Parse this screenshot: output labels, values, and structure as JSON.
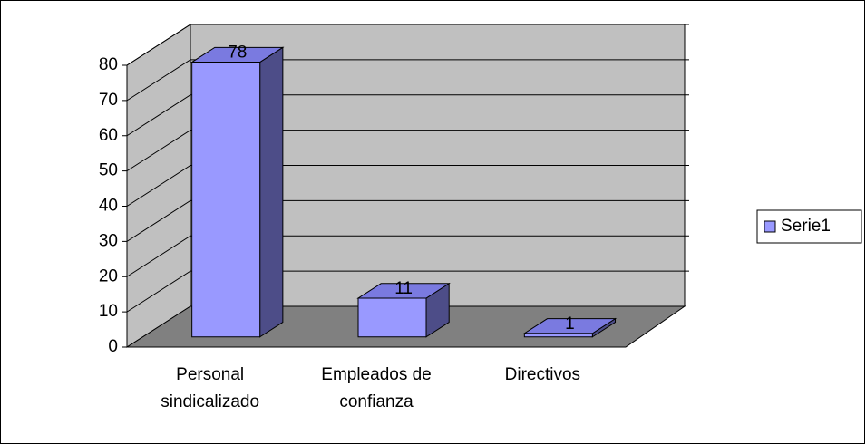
{
  "chart_data": {
    "type": "bar3d",
    "categories": [
      "Personal sindicalizado",
      "Empleados de confianza",
      "Directivos"
    ],
    "series": [
      {
        "name": "Serie1",
        "color": "#9999ff",
        "values": [
          78,
          11,
          1
        ]
      }
    ],
    "ylim": [
      0,
      80
    ],
    "yticks": [
      0,
      10,
      20,
      30,
      40,
      50,
      60,
      70,
      80
    ],
    "grid": true,
    "legend": "right"
  }
}
